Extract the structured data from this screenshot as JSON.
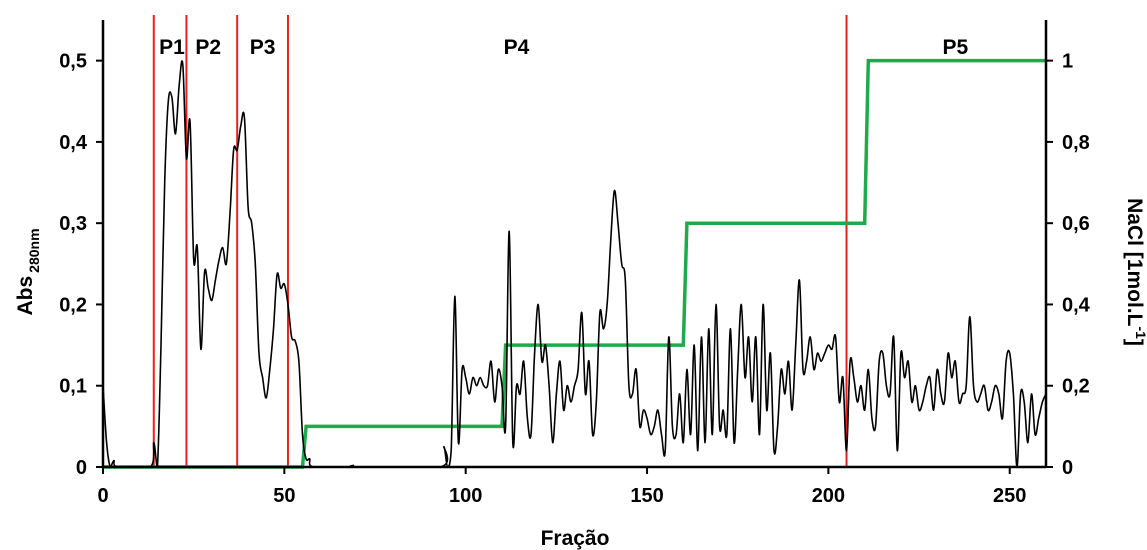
{
  "chart_data": {
    "type": "line",
    "xlabel": "Fração",
    "ylabel": {
      "main": "Abs",
      "sub": "280nm"
    },
    "y2label": {
      "main": "NaCl [1mol.L",
      "sup": "-1",
      "close": "]"
    },
    "xlim": [
      0,
      260
    ],
    "ylim": [
      0,
      0.55
    ],
    "y2lim": [
      0,
      1.1
    ],
    "x_ticks": [
      0,
      50,
      100,
      150,
      200,
      250
    ],
    "x_tick_labels": [
      "0",
      "50",
      "100",
      "150",
      "200",
      "250"
    ],
    "y_ticks": [
      0,
      0.1,
      0.2,
      0.3,
      0.4,
      0.5
    ],
    "y_tick_labels": [
      "0",
      "0,1",
      "0,2",
      "0,3",
      "0,4",
      "0,5"
    ],
    "y2_ticks": [
      0,
      0.2,
      0.4,
      0.6,
      0.8,
      1.0
    ],
    "y2_tick_labels": [
      "0",
      "0,2",
      "0,4",
      "0,6",
      "0,8",
      "1"
    ],
    "grid": false,
    "colors": {
      "absorbance": "#000000",
      "nacl": "#1faa4b",
      "dividers": "#e8201e"
    },
    "absorbance": [
      [
        0,
        0.1
      ],
      [
        1,
        0.03
      ],
      [
        2,
        0
      ],
      [
        3,
        0.008
      ],
      [
        4,
        0
      ],
      [
        13,
        0
      ],
      [
        14,
        0.03
      ],
      [
        15,
        0
      ],
      [
        16,
        0.15
      ],
      [
        17,
        0.35
      ],
      [
        18,
        0.45
      ],
      [
        19,
        0.455
      ],
      [
        20,
        0.41
      ],
      [
        21,
        0.47
      ],
      [
        22,
        0.495
      ],
      [
        23,
        0.38
      ],
      [
        24,
        0.425
      ],
      [
        25,
        0.255
      ],
      [
        26,
        0.27
      ],
      [
        27,
        0.145
      ],
      [
        28,
        0.24
      ],
      [
        29,
        0.22
      ],
      [
        30,
        0.205
      ],
      [
        31,
        0.23
      ],
      [
        32,
        0.255
      ],
      [
        33,
        0.27
      ],
      [
        34,
        0.25
      ],
      [
        35,
        0.31
      ],
      [
        36,
        0.39
      ],
      [
        37,
        0.39
      ],
      [
        38,
        0.42
      ],
      [
        39,
        0.43
      ],
      [
        40,
        0.32
      ],
      [
        41,
        0.3
      ],
      [
        42,
        0.25
      ],
      [
        43,
        0.14
      ],
      [
        44,
        0.11
      ],
      [
        45,
        0.085
      ],
      [
        46,
        0.12
      ],
      [
        47,
        0.17
      ],
      [
        48,
        0.237
      ],
      [
        49,
        0.22
      ],
      [
        50,
        0.225
      ],
      [
        51,
        0.2
      ],
      [
        52,
        0.16
      ],
      [
        53,
        0.155
      ],
      [
        54,
        0.13
      ],
      [
        55,
        0.04
      ],
      [
        56,
        0.01
      ],
      [
        57,
        0.01
      ],
      [
        58,
        0
      ],
      [
        68,
        0
      ],
      [
        69,
        0.002
      ],
      [
        70,
        0
      ],
      [
        93,
        0
      ],
      [
        94,
        0.025
      ],
      [
        95,
        0
      ],
      [
        96,
        0.02
      ],
      [
        97,
        0.21
      ],
      [
        98,
        0.03
      ],
      [
        99,
        0.12
      ],
      [
        100,
        0.11
      ],
      [
        101,
        0.09
      ],
      [
        102,
        0.11
      ],
      [
        103,
        0.1
      ],
      [
        104,
        0.11
      ],
      [
        105,
        0.1
      ],
      [
        106,
        0.1
      ],
      [
        107,
        0.13
      ],
      [
        108,
        0.08
      ],
      [
        109,
        0.12
      ],
      [
        110,
        0.1
      ],
      [
        111,
        0.05
      ],
      [
        112,
        0.29
      ],
      [
        113,
        0.03
      ],
      [
        114,
        0.1
      ],
      [
        115,
        0.09
      ],
      [
        116,
        0.13
      ],
      [
        117,
        0.06
      ],
      [
        118,
        0.04
      ],
      [
        119,
        0.14
      ],
      [
        120,
        0.2
      ],
      [
        121,
        0.13
      ],
      [
        122,
        0.15
      ],
      [
        123,
        0.1
      ],
      [
        124,
        0.03
      ],
      [
        125,
        0.09
      ],
      [
        126,
        0.13
      ],
      [
        127,
        0.07
      ],
      [
        128,
        0.1
      ],
      [
        129,
        0.08
      ],
      [
        130,
        0.1
      ],
      [
        131,
        0.12
      ],
      [
        132,
        0.19
      ],
      [
        133,
        0.09
      ],
      [
        134,
        0.13
      ],
      [
        135,
        0.04
      ],
      [
        136,
        0.08
      ],
      [
        137,
        0.19
      ],
      [
        138,
        0.17
      ],
      [
        139,
        0.2
      ],
      [
        140,
        0.28
      ],
      [
        141,
        0.34
      ],
      [
        142,
        0.3
      ],
      [
        143,
        0.25
      ],
      [
        144,
        0.23
      ],
      [
        145,
        0.1
      ],
      [
        146,
        0.09
      ],
      [
        147,
        0.12
      ],
      [
        148,
        0.05
      ],
      [
        149,
        0.07
      ],
      [
        150,
        0.06
      ],
      [
        151,
        0.04
      ],
      [
        152,
        0.05
      ],
      [
        153,
        0.07
      ],
      [
        154,
        0.04
      ],
      [
        155,
        0.02
      ],
      [
        156,
        0.16
      ],
      [
        157,
        0.05
      ],
      [
        158,
        0.04
      ],
      [
        159,
        0.09
      ],
      [
        160,
        0.03
      ],
      [
        161,
        0.12
      ],
      [
        162,
        0.04
      ],
      [
        163,
        0.15
      ],
      [
        164,
        0.02
      ],
      [
        165,
        0.16
      ],
      [
        166,
        0.03
      ],
      [
        167,
        0.17
      ],
      [
        168,
        0.04
      ],
      [
        169,
        0.2
      ],
      [
        170,
        0.05
      ],
      [
        171,
        0.07
      ],
      [
        172,
        0.04
      ],
      [
        173,
        0.17
      ],
      [
        174,
        0.03
      ],
      [
        175,
        0.12
      ],
      [
        176,
        0.2
      ],
      [
        177,
        0.11
      ],
      [
        178,
        0.16
      ],
      [
        179,
        0.08
      ],
      [
        180,
        0.16
      ],
      [
        181,
        0.04
      ],
      [
        182,
        0.2
      ],
      [
        183,
        0.07
      ],
      [
        184,
        0.14
      ],
      [
        185,
        0.02
      ],
      [
        186,
        0.05
      ],
      [
        187,
        0.12
      ],
      [
        188,
        0.09
      ],
      [
        189,
        0.13
      ],
      [
        190,
        0.07
      ],
      [
        191,
        0.15
      ],
      [
        192,
        0.23
      ],
      [
        193,
        0.12
      ],
      [
        194,
        0.13
      ],
      [
        195,
        0.16
      ],
      [
        196,
        0.12
      ],
      [
        197,
        0.14
      ],
      [
        198,
        0.13
      ],
      [
        199,
        0.14
      ],
      [
        200,
        0.15
      ],
      [
        201,
        0.145
      ],
      [
        202,
        0.16
      ],
      [
        203,
        0.08
      ],
      [
        204,
        0.11
      ],
      [
        205,
        0.02
      ],
      [
        206,
        0.13
      ],
      [
        207,
        0.11
      ],
      [
        208,
        0.08
      ],
      [
        209,
        0.1
      ],
      [
        210,
        0.07
      ],
      [
        211,
        0.12
      ],
      [
        212,
        0.06
      ],
      [
        213,
        0.05
      ],
      [
        214,
        0.13
      ],
      [
        215,
        0.14
      ],
      [
        216,
        0.1
      ],
      [
        217,
        0.09
      ],
      [
        218,
        0.16
      ],
      [
        219,
        0.02
      ],
      [
        220,
        0.14
      ],
      [
        221,
        0.11
      ],
      [
        222,
        0.13
      ],
      [
        223,
        0.08
      ],
      [
        224,
        0.1
      ],
      [
        225,
        0.07
      ],
      [
        226,
        0.08
      ],
      [
        227,
        0.1
      ],
      [
        228,
        0.11
      ],
      [
        229,
        0.07
      ],
      [
        230,
        0.12
      ],
      [
        231,
        0.09
      ],
      [
        232,
        0.08
      ],
      [
        233,
        0.14
      ],
      [
        234,
        0.11
      ],
      [
        235,
        0.13
      ],
      [
        236,
        0.08
      ],
      [
        237,
        0.09
      ],
      [
        238,
        0.1
      ],
      [
        239,
        0.185
      ],
      [
        240,
        0.1
      ],
      [
        241,
        0.08
      ],
      [
        242,
        0.09
      ],
      [
        243,
        0.1
      ],
      [
        244,
        0.07
      ],
      [
        245,
        0.08
      ],
      [
        246,
        0.1
      ],
      [
        247,
        0.09
      ],
      [
        248,
        0.06
      ],
      [
        249,
        0.13
      ],
      [
        250,
        0.14
      ],
      [
        251,
        0.09
      ],
      [
        252,
        0.0
      ],
      [
        253,
        0.09
      ],
      [
        254,
        0.08
      ],
      [
        255,
        0.03
      ],
      [
        256,
        0.09
      ],
      [
        257,
        0.04
      ],
      [
        258,
        0.06
      ],
      [
        259,
        0.08
      ],
      [
        260,
        0.09
      ]
    ],
    "nacl_steps": [
      [
        0,
        0
      ],
      [
        55,
        0
      ],
      [
        56,
        0.1
      ],
      [
        110,
        0.1
      ],
      [
        111,
        0.3
      ],
      [
        160,
        0.3
      ],
      [
        161,
        0.6
      ],
      [
        210,
        0.6
      ],
      [
        211,
        1.0
      ],
      [
        260,
        1.0
      ]
    ],
    "dividers": [
      14,
      23,
      37,
      51,
      205
    ],
    "peaks": [
      {
        "label": "P1",
        "x": 19
      },
      {
        "label": "P2",
        "x": 29
      },
      {
        "label": "P3",
        "x": 44
      },
      {
        "label": "P4",
        "x": 114
      },
      {
        "label": "P5",
        "x": 235
      }
    ]
  }
}
